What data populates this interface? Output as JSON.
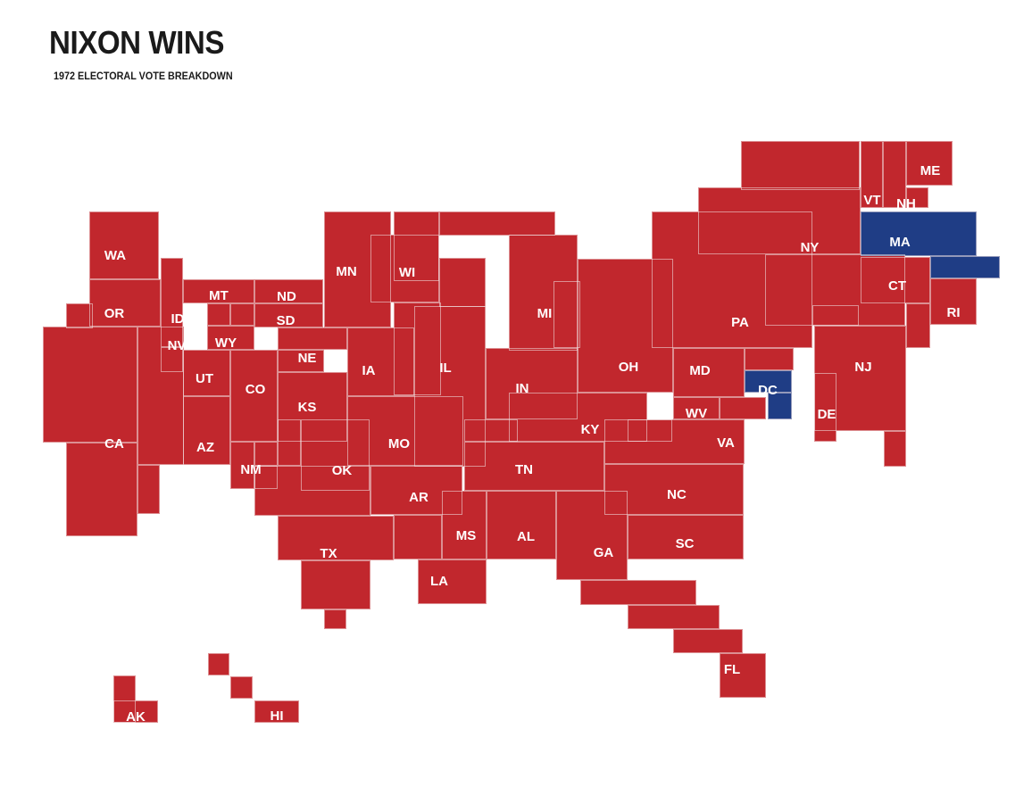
{
  "header": {
    "title": "NIXON WINS",
    "subtitle": "1972 ELECTORAL VOTE BREAKDOWN"
  },
  "colors": {
    "nixon": "#c1272d",
    "mcgovern": "#1f3d85",
    "border": "#f2e6e6"
  },
  "states": [
    {
      "abbr": "WA",
      "winner": "nixon"
    },
    {
      "abbr": "OR",
      "winner": "nixon"
    },
    {
      "abbr": "CA",
      "winner": "nixon"
    },
    {
      "abbr": "ID",
      "winner": "nixon"
    },
    {
      "abbr": "NV",
      "winner": "nixon"
    },
    {
      "abbr": "MT",
      "winner": "nixon"
    },
    {
      "abbr": "WY",
      "winner": "nixon"
    },
    {
      "abbr": "UT",
      "winner": "nixon"
    },
    {
      "abbr": "AZ",
      "winner": "nixon"
    },
    {
      "abbr": "CO",
      "winner": "nixon"
    },
    {
      "abbr": "NM",
      "winner": "nixon"
    },
    {
      "abbr": "ND",
      "winner": "nixon"
    },
    {
      "abbr": "SD",
      "winner": "nixon"
    },
    {
      "abbr": "NE",
      "winner": "nixon"
    },
    {
      "abbr": "KS",
      "winner": "nixon"
    },
    {
      "abbr": "OK",
      "winner": "nixon"
    },
    {
      "abbr": "TX",
      "winner": "nixon"
    },
    {
      "abbr": "MN",
      "winner": "nixon"
    },
    {
      "abbr": "IA",
      "winner": "nixon"
    },
    {
      "abbr": "MO",
      "winner": "nixon"
    },
    {
      "abbr": "AR",
      "winner": "nixon"
    },
    {
      "abbr": "LA",
      "winner": "nixon"
    },
    {
      "abbr": "WI",
      "winner": "nixon"
    },
    {
      "abbr": "IL",
      "winner": "nixon"
    },
    {
      "abbr": "MI",
      "winner": "nixon"
    },
    {
      "abbr": "IN",
      "winner": "nixon"
    },
    {
      "abbr": "OH",
      "winner": "nixon"
    },
    {
      "abbr": "KY",
      "winner": "nixon"
    },
    {
      "abbr": "TN",
      "winner": "nixon"
    },
    {
      "abbr": "MS",
      "winner": "nixon"
    },
    {
      "abbr": "AL",
      "winner": "nixon"
    },
    {
      "abbr": "GA",
      "winner": "nixon"
    },
    {
      "abbr": "FL",
      "winner": "nixon"
    },
    {
      "abbr": "SC",
      "winner": "nixon"
    },
    {
      "abbr": "NC",
      "winner": "nixon"
    },
    {
      "abbr": "VA",
      "winner": "nixon"
    },
    {
      "abbr": "WV",
      "winner": "nixon"
    },
    {
      "abbr": "MD",
      "winner": "nixon"
    },
    {
      "abbr": "DC",
      "winner": "mcgovern"
    },
    {
      "abbr": "DE",
      "winner": "nixon"
    },
    {
      "abbr": "NJ",
      "winner": "nixon"
    },
    {
      "abbr": "PA",
      "winner": "nixon"
    },
    {
      "abbr": "NY",
      "winner": "nixon"
    },
    {
      "abbr": "CT",
      "winner": "nixon"
    },
    {
      "abbr": "RI",
      "winner": "nixon"
    },
    {
      "abbr": "MA",
      "winner": "mcgovern"
    },
    {
      "abbr": "VT",
      "winner": "nixon"
    },
    {
      "abbr": "NH",
      "winner": "nixon"
    },
    {
      "abbr": "ME",
      "winner": "nixon"
    },
    {
      "abbr": "AK",
      "winner": "nixon"
    },
    {
      "abbr": "HI",
      "winner": "nixon"
    }
  ]
}
